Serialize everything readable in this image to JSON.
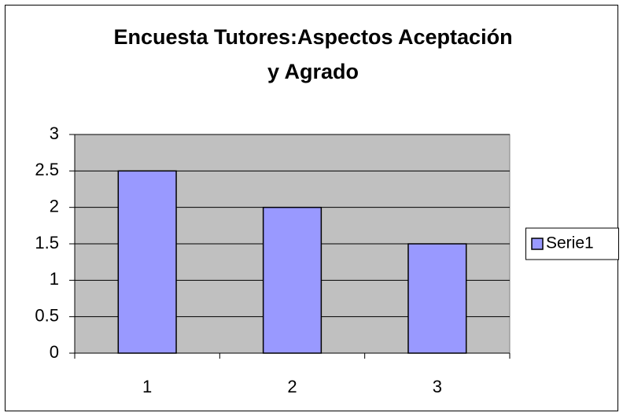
{
  "chart_data": {
    "type": "bar",
    "title": [
      "Encuesta Tutores:Aspectos Aceptación",
      "y Agrado"
    ],
    "categories": [
      "1",
      "2",
      "3"
    ],
    "series": [
      {
        "name": "Serie1",
        "color": "#9999ff",
        "values": [
          2.5,
          2,
          1.5
        ]
      }
    ],
    "ylim": [
      0,
      3
    ],
    "yticks": [
      0,
      0.5,
      1,
      1.5,
      2,
      2.5,
      3
    ],
    "grid": true,
    "legend": "right"
  }
}
